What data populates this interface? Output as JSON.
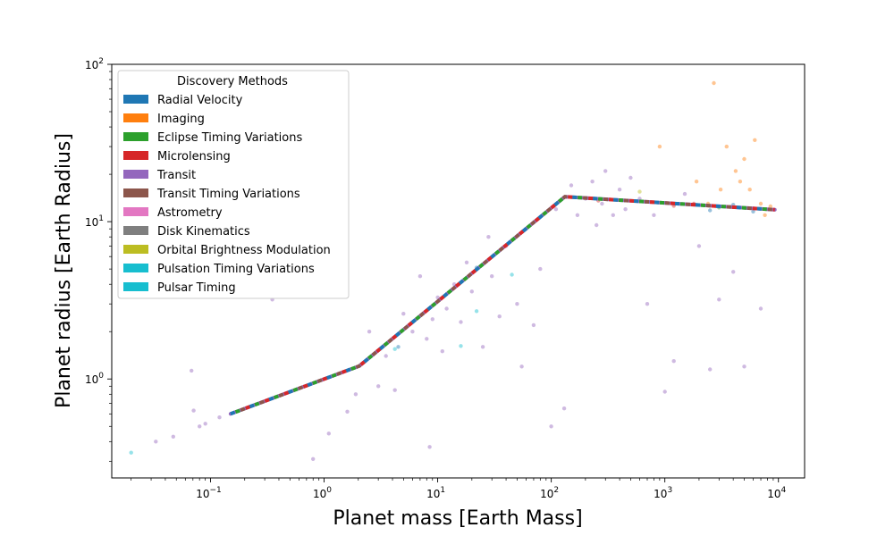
{
  "chart_data": {
    "type": "scatter",
    "x_scale": "log",
    "y_scale": "log",
    "xlabel": "Planet mass [Earth Mass]",
    "ylabel": "Planet radius [Earth Radius]",
    "xlim": [
      0.0135,
      17000
    ],
    "ylim": [
      0.235,
      100
    ],
    "x_ticks": [
      {
        "value": 0.1,
        "base": "10",
        "exp": "−1"
      },
      {
        "value": 1,
        "base": "10",
        "exp": "0"
      },
      {
        "value": 10,
        "base": "10",
        "exp": "1"
      },
      {
        "value": 100,
        "base": "10",
        "exp": "2"
      },
      {
        "value": 1000,
        "base": "10",
        "exp": "3"
      },
      {
        "value": 10000,
        "base": "10",
        "exp": "4"
      }
    ],
    "y_ticks": [
      {
        "value": 1,
        "base": "10",
        "exp": "0"
      },
      {
        "value": 10,
        "base": "10",
        "exp": "1"
      },
      {
        "value": 100,
        "base": "10",
        "exp": "2"
      }
    ],
    "legend": {
      "title": "Discovery Methods",
      "placement": "top-left",
      "entries": [
        {
          "label": "Radial Velocity",
          "color": "#1f77b4"
        },
        {
          "label": "Imaging",
          "color": "#ff7f0e"
        },
        {
          "label": "Eclipse Timing Variations",
          "color": "#2ca02c"
        },
        {
          "label": "Microlensing",
          "color": "#d62728"
        },
        {
          "label": "Transit",
          "color": "#9467bd"
        },
        {
          "label": "Transit Timing Variations",
          "color": "#8c564b"
        },
        {
          "label": "Astrometry",
          "color": "#e377c2"
        },
        {
          "label": "Disk Kinematics",
          "color": "#7f7f7f"
        },
        {
          "label": "Orbital Brightness Modulation",
          "color": "#bcbd22"
        },
        {
          "label": "Pulsation Timing Variations",
          "color": "#17becf"
        },
        {
          "label": "Pulsar Timing",
          "color": "#17becf"
        }
      ]
    },
    "mass_radius_relation": [
      [
        0.15,
        0.6
      ],
      [
        2.04,
        1.21
      ],
      [
        132,
        14.4
      ],
      [
        9300,
        11.9
      ]
    ],
    "series": [
      {
        "name": "Transit",
        "color": "#9467bd",
        "points": [
          [
            0.033,
            0.4
          ],
          [
            0.047,
            0.43
          ],
          [
            0.068,
            1.13
          ],
          [
            0.071,
            0.63
          ],
          [
            0.08,
            0.5
          ],
          [
            0.09,
            0.52
          ],
          [
            0.12,
            0.57
          ],
          [
            0.35,
            3.2
          ],
          [
            0.8,
            0.31
          ],
          [
            1.1,
            0.45
          ],
          [
            1.6,
            0.62
          ],
          [
            1.9,
            0.8
          ],
          [
            2.5,
            2.0
          ],
          [
            3.0,
            0.9
          ],
          [
            3.5,
            1.4
          ],
          [
            4.2,
            0.85
          ],
          [
            5.0,
            2.6
          ],
          [
            6.0,
            2.0
          ],
          [
            7.0,
            4.5
          ],
          [
            8.0,
            1.8
          ],
          [
            8.5,
            0.37
          ],
          [
            9.0,
            2.4
          ],
          [
            10,
            3.3
          ],
          [
            11,
            1.5
          ],
          [
            12,
            2.8
          ],
          [
            14,
            4.0
          ],
          [
            16,
            2.3
          ],
          [
            18,
            5.5
          ],
          [
            20,
            3.6
          ],
          [
            25,
            1.6
          ],
          [
            28,
            8.0
          ],
          [
            30,
            4.5
          ],
          [
            35,
            2.5
          ],
          [
            40,
            7.0
          ],
          [
            50,
            3.0
          ],
          [
            55,
            1.2
          ],
          [
            60,
            9.0
          ],
          [
            70,
            2.2
          ],
          [
            80,
            5.0
          ],
          [
            100,
            0.5
          ],
          [
            110,
            12
          ],
          [
            130,
            0.65
          ],
          [
            150,
            17
          ],
          [
            170,
            11
          ],
          [
            200,
            14
          ],
          [
            230,
            18
          ],
          [
            250,
            9.5
          ],
          [
            280,
            13
          ],
          [
            300,
            21
          ],
          [
            350,
            11
          ],
          [
            400,
            16
          ],
          [
            450,
            12
          ],
          [
            500,
            19
          ],
          [
            600,
            14
          ],
          [
            700,
            3.0
          ],
          [
            800,
            11
          ],
          [
            1000,
            0.83
          ],
          [
            1200,
            1.3
          ],
          [
            1500,
            15
          ],
          [
            2000,
            7.0
          ],
          [
            2500,
            1.15
          ],
          [
            3000,
            3.2
          ],
          [
            4000,
            4.8
          ],
          [
            5000,
            1.2
          ],
          [
            7000,
            2.8
          ]
        ]
      },
      {
        "name": "Imaging",
        "color": "#ff7f0e",
        "points": [
          [
            2700,
            76
          ],
          [
            3500,
            30
          ],
          [
            4200,
            21
          ],
          [
            5000,
            25
          ],
          [
            6200,
            33
          ],
          [
            4600,
            18
          ],
          [
            3100,
            16
          ],
          [
            7000,
            13
          ],
          [
            7600,
            11
          ],
          [
            8500,
            12.5
          ],
          [
            900,
            30
          ],
          [
            1900,
            18
          ],
          [
            2400,
            13
          ],
          [
            5600,
            16
          ]
        ]
      },
      {
        "name": "Radial Velocity",
        "color": "#1f77b4",
        "points": [
          [
            2500,
            11.8
          ],
          [
            4000,
            12.8
          ],
          [
            6000,
            11.6
          ],
          [
            22,
            5.1
          ],
          [
            4.5,
            1.6
          ]
        ]
      },
      {
        "name": "Microlensing",
        "color": "#d62728",
        "points": [
          [
            1200,
            12.6
          ],
          [
            1800,
            13.0
          ],
          [
            260,
            13.6
          ]
        ]
      },
      {
        "name": "Pulsar Timing",
        "color": "#17becf",
        "points": [
          [
            0.02,
            0.34
          ],
          [
            4.2,
            1.55
          ],
          [
            16,
            1.62
          ],
          [
            22,
            2.7
          ],
          [
            45,
            4.6
          ]
        ]
      },
      {
        "name": "Eclipse Timing Variations",
        "color": "#2ca02c",
        "points": [
          [
            3000,
            12.3
          ]
        ]
      },
      {
        "name": "Orbital Brightness Modulation",
        "color": "#bcbd22",
        "points": [
          [
            600,
            15.5
          ]
        ]
      }
    ]
  }
}
